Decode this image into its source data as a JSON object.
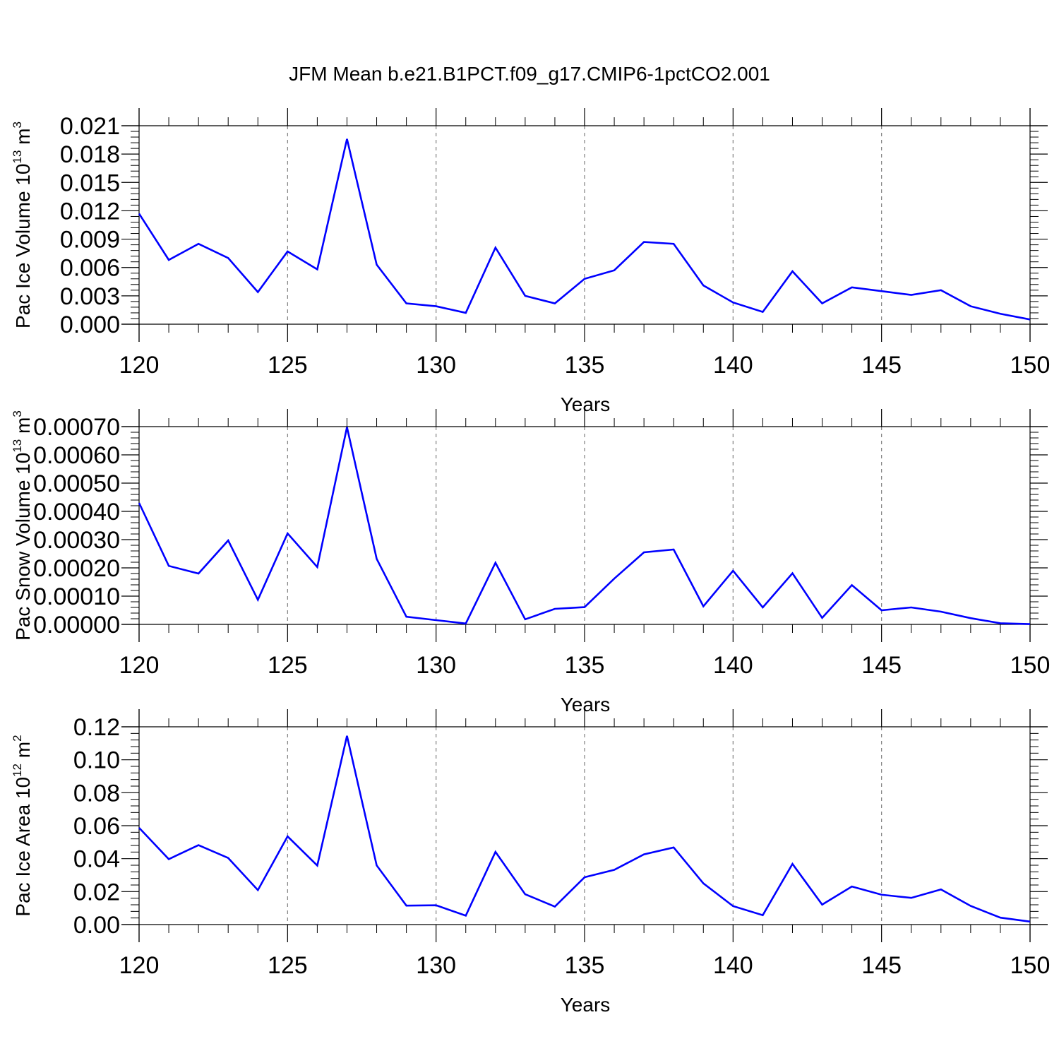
{
  "title": "JFM Mean b.e21.B1PCT.f09_g17.CMIP6-1pctCO2.001",
  "colors": {
    "line": "#0000ff",
    "axis": "#000000",
    "grid": "#808080",
    "background": "#ffffff"
  },
  "chart_data": [
    {
      "type": "line",
      "title": "JFM Mean b.e21.B1PCT.f09_g17.CMIP6-1pctCO2.001",
      "xlabel": "Years",
      "ylabel": {
        "text": "Pac Ice Volume 10",
        "sup": "13",
        "unit": " m",
        "unit_sup": "3"
      },
      "xlim": [
        120,
        150
      ],
      "ylim": [
        0,
        0.021
      ],
      "x_ticks": [
        "120",
        "125",
        "130",
        "135",
        "140",
        "145",
        "150"
      ],
      "y_ticks": [
        "0.000",
        "0.003",
        "0.006",
        "0.009",
        "0.012",
        "0.015",
        "0.018",
        "0.021"
      ],
      "grid": "vertical dashed at major x ticks",
      "x": [
        120,
        121,
        122,
        123,
        124,
        125,
        126,
        127,
        128,
        129,
        130,
        131,
        132,
        133,
        134,
        135,
        136,
        137,
        138,
        139,
        140,
        141,
        142,
        143,
        144,
        145,
        146,
        147,
        148,
        149,
        150
      ],
      "series": [
        {
          "values": [
            0.0117,
            0.0068,
            0.0085,
            0.007,
            0.0034,
            0.0077,
            0.0058,
            0.0196,
            0.0063,
            0.0022,
            0.0019,
            0.0012,
            0.0081,
            0.003,
            0.0022,
            0.0048,
            0.0057,
            0.0087,
            0.0085,
            0.0041,
            0.0023,
            0.0013,
            0.0056,
            0.0022,
            0.0039,
            0.0035,
            0.0031,
            0.0036,
            0.0019,
            0.0011,
            0.0005
          ]
        }
      ]
    },
    {
      "type": "line",
      "xlabel": "Years",
      "ylabel": {
        "text": "Pac Snow Volume 10",
        "sup": "13",
        "unit": " m",
        "unit_sup": "3"
      },
      "xlim": [
        120,
        150
      ],
      "ylim": [
        0,
        0.0007
      ],
      "x_ticks": [
        "120",
        "125",
        "130",
        "135",
        "140",
        "145",
        "150"
      ],
      "y_ticks": [
        "0.00000",
        "0.00010",
        "0.00020",
        "0.00030",
        "0.00040",
        "0.00050",
        "0.00060",
        "0.00070"
      ],
      "grid": "vertical dashed at major x ticks",
      "x": [
        120,
        121,
        122,
        123,
        124,
        125,
        126,
        127,
        128,
        129,
        130,
        131,
        132,
        133,
        134,
        135,
        136,
        137,
        138,
        139,
        140,
        141,
        142,
        143,
        144,
        145,
        146,
        147,
        148,
        149,
        150
      ],
      "series": [
        {
          "values": [
            0.00043,
            0.000207,
            0.00018,
            0.000297,
            8.7e-05,
            0.000322,
            0.000203,
            0.000698,
            0.000232,
            2.7e-05,
            1.5e-05,
            3e-06,
            0.000218,
            1.8e-05,
            5.5e-05,
            6.1e-05,
            0.000162,
            0.000255,
            0.000265,
            6.4e-05,
            0.00019,
            6e-05,
            0.000181,
            2.3e-05,
            0.000139,
            5e-05,
            6e-05,
            4.5e-05,
            2.2e-05,
            4e-06,
            1e-06
          ]
        }
      ]
    },
    {
      "type": "line",
      "xlabel": "Years",
      "ylabel": {
        "text": "Pac Ice Area 10",
        "sup": "12",
        "unit": " m",
        "unit_sup": "2"
      },
      "xlim": [
        120,
        150
      ],
      "ylim": [
        0,
        0.12
      ],
      "x_ticks": [
        "120",
        "125",
        "130",
        "135",
        "140",
        "145",
        "150"
      ],
      "y_ticks": [
        "0.00",
        "0.02",
        "0.04",
        "0.06",
        "0.08",
        "0.10",
        "0.12"
      ],
      "grid": "vertical dashed at major x ticks",
      "x": [
        120,
        121,
        122,
        123,
        124,
        125,
        126,
        127,
        128,
        129,
        130,
        131,
        132,
        133,
        134,
        135,
        136,
        137,
        138,
        139,
        140,
        141,
        142,
        143,
        144,
        145,
        146,
        147,
        148,
        149,
        150
      ],
      "series": [
        {
          "values": [
            0.0587,
            0.0397,
            0.0482,
            0.0404,
            0.0209,
            0.0535,
            0.0358,
            0.1145,
            0.0359,
            0.0115,
            0.0117,
            0.0054,
            0.0441,
            0.0184,
            0.0109,
            0.0287,
            0.0332,
            0.0426,
            0.0468,
            0.025,
            0.0112,
            0.0057,
            0.0368,
            0.0121,
            0.0231,
            0.0181,
            0.0162,
            0.0213,
            0.0113,
            0.0042,
            0.0018
          ]
        }
      ]
    }
  ]
}
